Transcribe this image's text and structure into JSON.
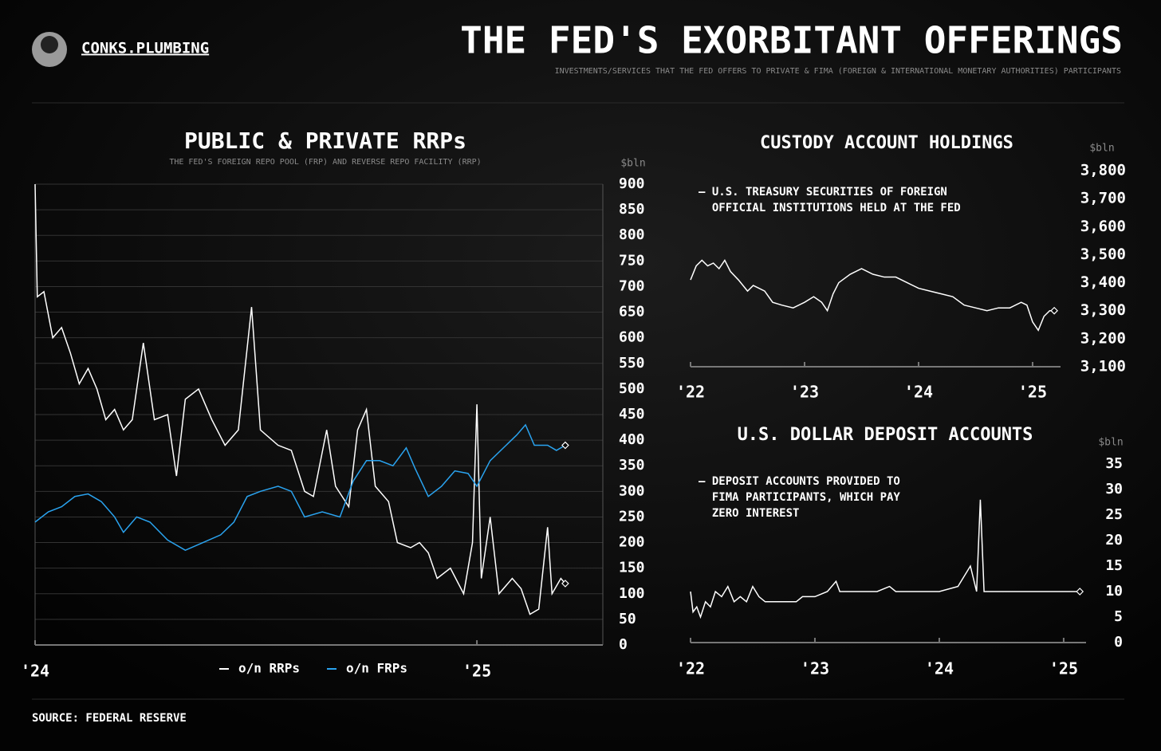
{
  "brand": "CONKS.PLUMBING",
  "title": "THE FED'S EXORBITANT OFFERINGS",
  "subtitle": "INVESTMENTS/SERVICES THAT THE FED OFFERS TO PRIVATE & FIMA (FOREIGN & INTERNATIONAL MONETARY AUTHORITIES) PARTICIPANTS",
  "source": "SOURCE: FEDERAL RESERVE",
  "chart_data": [
    {
      "type": "line",
      "title": "PUBLIC & PRIVATE RRPs",
      "subtitle": "THE FED'S FOREIGN REPO POOL (FRP) AND REVERSE REPO FACILITY (RRP)",
      "y_unit": "$bln",
      "grid": true,
      "xlim": [
        2024,
        2025.285
      ],
      "xticks": [
        {
          "value": 2024,
          "label": "'24"
        },
        {
          "value": 2025,
          "label": "'25"
        }
      ],
      "ylim": [
        0,
        900
      ],
      "yticks": [
        0,
        50,
        100,
        150,
        200,
        250,
        300,
        350,
        400,
        450,
        500,
        550,
        600,
        650,
        700,
        750,
        800,
        850,
        900
      ],
      "series": [
        {
          "name": "o/n RRPs",
          "color": "#ffffff",
          "x": [
            2024.0,
            2024.005,
            2024.02,
            2024.04,
            2024.06,
            2024.08,
            2024.1,
            2024.12,
            2024.14,
            2024.16,
            2024.18,
            2024.2,
            2024.22,
            2024.245,
            2024.27,
            2024.3,
            2024.32,
            2024.34,
            2024.37,
            2024.4,
            2024.43,
            2024.46,
            2024.49,
            2024.51,
            2024.55,
            2024.58,
            2024.61,
            2024.63,
            2024.66,
            2024.68,
            2024.71,
            2024.73,
            2024.75,
            2024.77,
            2024.8,
            2024.82,
            2024.85,
            2024.87,
            2024.89,
            2024.91,
            2024.94,
            2024.97,
            2024.99,
            2025.0,
            2025.01,
            2025.03,
            2025.05,
            2025.08,
            2025.1,
            2025.12,
            2025.14,
            2025.16,
            2025.17,
            2025.19,
            2025.2
          ],
          "values": [
            900,
            680,
            690,
            600,
            620,
            570,
            510,
            540,
            500,
            440,
            460,
            420,
            440,
            590,
            440,
            450,
            330,
            480,
            500,
            440,
            390,
            420,
            660,
            420,
            390,
            380,
            300,
            290,
            420,
            310,
            270,
            420,
            460,
            310,
            280,
            200,
            190,
            200,
            180,
            130,
            150,
            100,
            200,
            470,
            130,
            250,
            100,
            130,
            110,
            60,
            70,
            230,
            100,
            130,
            120
          ]
        },
        {
          "name": "o/n FRPs",
          "color": "#2aa3ef",
          "x": [
            2024.0,
            2024.03,
            2024.06,
            2024.09,
            2024.12,
            2024.15,
            2024.18,
            2024.2,
            2024.23,
            2024.26,
            2024.3,
            2024.34,
            2024.38,
            2024.42,
            2024.45,
            2024.48,
            2024.51,
            2024.55,
            2024.58,
            2024.61,
            2024.65,
            2024.69,
            2024.72,
            2024.75,
            2024.78,
            2024.81,
            2024.84,
            2024.86,
            2024.89,
            2024.92,
            2024.95,
            2024.98,
            2025.0,
            2025.03,
            2025.06,
            2025.09,
            2025.11,
            2025.13,
            2025.16,
            2025.18,
            2025.2
          ],
          "values": [
            240,
            260,
            270,
            290,
            295,
            280,
            250,
            220,
            250,
            240,
            205,
            185,
            200,
            215,
            240,
            290,
            300,
            310,
            300,
            250,
            260,
            250,
            320,
            360,
            360,
            350,
            385,
            345,
            290,
            310,
            340,
            335,
            310,
            360,
            385,
            410,
            430,
            390,
            390,
            380,
            390
          ]
        }
      ]
    },
    {
      "type": "line",
      "title": "CUSTODY ACCOUNT HOLDINGS",
      "annotation": [
        "— U.S. TREASURY SECURITIES OF FOREIGN",
        "  OFFICIAL INSTITUTIONS HELD AT THE FED"
      ],
      "y_unit": "$bln",
      "grid": false,
      "xlim": [
        2022,
        2025.245
      ],
      "xticks": [
        {
          "value": 2022,
          "label": "'22"
        },
        {
          "value": 2023,
          "label": "'23"
        },
        {
          "value": 2024,
          "label": "'24"
        },
        {
          "value": 2025,
          "label": "'25"
        }
      ],
      "ylim": [
        3100,
        3800
      ],
      "yticks": [
        {
          "value": 3100,
          "label": "3,100"
        },
        {
          "value": 3200,
          "label": "3,200"
        },
        {
          "value": 3300,
          "label": "3,300"
        },
        {
          "value": 3400,
          "label": "3,400"
        },
        {
          "value": 3500,
          "label": "3,500"
        },
        {
          "value": 3600,
          "label": "3,600"
        },
        {
          "value": 3700,
          "label": "3,700"
        },
        {
          "value": 3800,
          "label": "3,800"
        }
      ],
      "series": [
        {
          "color": "#ffffff",
          "x": [
            2022.0,
            2022.05,
            2022.1,
            2022.15,
            2022.2,
            2022.25,
            2022.3,
            2022.35,
            2022.42,
            2022.5,
            2022.55,
            2022.6,
            2022.65,
            2022.72,
            2022.8,
            2022.9,
            2023.0,
            2023.08,
            2023.15,
            2023.2,
            2023.25,
            2023.3,
            2023.4,
            2023.5,
            2023.6,
            2023.7,
            2023.8,
            2023.9,
            2024.0,
            2024.1,
            2024.2,
            2024.3,
            2024.4,
            2024.5,
            2024.6,
            2024.7,
            2024.8,
            2024.9,
            2024.95,
            2025.0,
            2025.05,
            2025.1,
            2025.15,
            2025.19
          ],
          "values": [
            3410,
            3460,
            3480,
            3460,
            3470,
            3450,
            3480,
            3440,
            3410,
            3370,
            3390,
            3380,
            3370,
            3330,
            3320,
            3310,
            3330,
            3350,
            3330,
            3300,
            3360,
            3400,
            3430,
            3450,
            3430,
            3420,
            3420,
            3400,
            3380,
            3370,
            3360,
            3350,
            3320,
            3310,
            3300,
            3310,
            3310,
            3330,
            3320,
            3260,
            3230,
            3280,
            3300,
            3300
          ]
        }
      ]
    },
    {
      "type": "line",
      "title": "U.S. DOLLAR DEPOSIT ACCOUNTS",
      "annotation": [
        "— DEPOSIT ACCOUNTS PROVIDED TO",
        "  FIMA PARTICIPANTS, WHICH PAY",
        "  ZERO INTEREST"
      ],
      "y_unit": "$bln",
      "grid": false,
      "xlim": [
        2022,
        2025.18
      ],
      "xticks": [
        {
          "value": 2022,
          "label": "'22"
        },
        {
          "value": 2023,
          "label": "'23"
        },
        {
          "value": 2024,
          "label": "'24"
        },
        {
          "value": 2025,
          "label": "'25"
        }
      ],
      "ylim": [
        0,
        35
      ],
      "yticks": [
        0,
        5,
        10,
        15,
        20,
        25,
        30,
        35
      ],
      "series": [
        {
          "color": "#ffffff",
          "x": [
            2022.0,
            2022.02,
            2022.05,
            2022.08,
            2022.12,
            2022.16,
            2022.2,
            2022.25,
            2022.3,
            2022.35,
            2022.4,
            2022.45,
            2022.5,
            2022.55,
            2022.6,
            2022.65,
            2022.75,
            2022.85,
            2022.9,
            2023.0,
            2023.1,
            2023.17,
            2023.2,
            2023.3,
            2023.5,
            2023.6,
            2023.65,
            2024.0,
            2024.15,
            2024.25,
            2024.3,
            2024.33,
            2024.36,
            2024.5,
            2024.6,
            2024.8,
            2025.0,
            2025.13
          ],
          "values": [
            10,
            6,
            7,
            5,
            8,
            7,
            10,
            9,
            11,
            8,
            9,
            8,
            11,
            9,
            8,
            8,
            8,
            8,
            9,
            9,
            10,
            12,
            10,
            10,
            10,
            11,
            10,
            10,
            11,
            15,
            10,
            28,
            10,
            10,
            10,
            10,
            10,
            10
          ]
        }
      ]
    }
  ]
}
